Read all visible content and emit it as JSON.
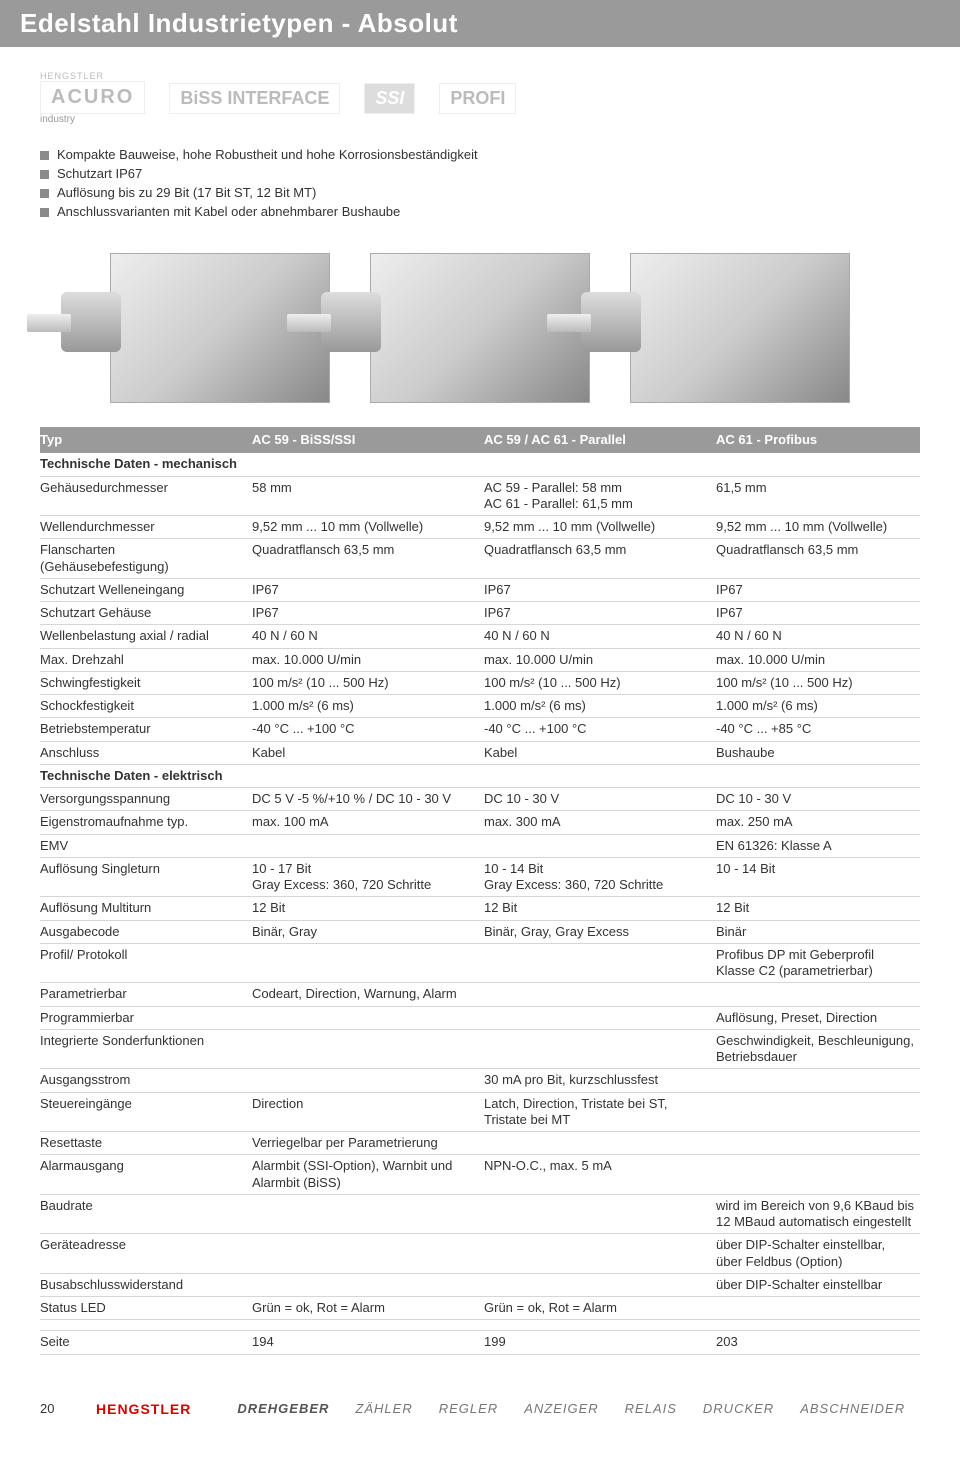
{
  "title": "Edelstahl Industrietypen - Absolut",
  "logos": {
    "l1_top": "HENGSTLER",
    "l1": "ACURO",
    "l1_sub": "industry",
    "l2": "BiSS INTERFACE",
    "l3": "SSI",
    "l4": "PROFI"
  },
  "features": [
    "Kompakte Bauweise, hohe Robustheit und hohe Korrosionsbeständigkeit",
    "Schutzart IP67",
    "Auflösung bis zu 29 Bit (17 Bit ST, 12 Bit MT)",
    "Anschlussvarianten mit Kabel oder abnehmbarer Bushaube"
  ],
  "table": {
    "header": {
      "label": "Typ",
      "c1": "AC 59 - BiSS/SSI",
      "c2": "AC 59 / AC 61 - Parallel",
      "c3": "AC 61 - Profibus"
    },
    "section_mech": "Technische Daten - mechanisch",
    "section_elek": "Technische Daten - elektrisch",
    "rows_mech": [
      {
        "label": "Gehäusedurchmesser",
        "c1": "58 mm",
        "c2": "AC 59 - Parallel: 58 mm\nAC 61 - Parallel: 61,5 mm",
        "c3": "61,5 mm"
      },
      {
        "label": "Wellendurchmesser",
        "c1": "9,52 mm ... 10 mm (Vollwelle)",
        "c2": "9,52 mm ... 10 mm (Vollwelle)",
        "c3": "9,52 mm ... 10 mm (Vollwelle)"
      },
      {
        "label": "Flanscharten\n(Gehäusebefestigung)",
        "c1": "Quadratflansch 63,5 mm",
        "c2": "Quadratflansch 63,5 mm",
        "c3": "Quadratflansch 63,5 mm"
      },
      {
        "label": "Schutzart Welleneingang",
        "c1": "IP67",
        "c2": "IP67",
        "c3": "IP67"
      },
      {
        "label": "Schutzart Gehäuse",
        "c1": "IP67",
        "c2": "IP67",
        "c3": "IP67"
      },
      {
        "label": "Wellenbelastung axial / radial",
        "c1": "40 N / 60 N",
        "c2": "40 N / 60 N",
        "c3": "40 N / 60 N"
      },
      {
        "label": "Max. Drehzahl",
        "c1": "max. 10.000 U/min",
        "c2": "max. 10.000 U/min",
        "c3": "max. 10.000 U/min"
      },
      {
        "label": "Schwingfestigkeit",
        "c1": "100 m/s² (10 ... 500 Hz)",
        "c2": "100 m/s² (10 ... 500 Hz)",
        "c3": "100 m/s² (10 ... 500 Hz)"
      },
      {
        "label": "Schockfestigkeit",
        "c1": "1.000 m/s² (6 ms)",
        "c2": "1.000 m/s² (6 ms)",
        "c3": "1.000 m/s² (6 ms)"
      },
      {
        "label": "Betriebstemperatur",
        "c1": "-40 °C ... +100 °C",
        "c2": "-40 °C ... +100 °C",
        "c3": "-40 °C ... +85 °C"
      },
      {
        "label": "Anschluss",
        "c1": "Kabel",
        "c2": "Kabel",
        "c3": "Bushaube"
      }
    ],
    "rows_elek": [
      {
        "label": "Versorgungsspannung",
        "c1": "DC 5 V -5 %/+10 % / DC 10 - 30 V",
        "c2": "DC 10 - 30 V",
        "c3": "DC 10 - 30 V"
      },
      {
        "label": "Eigenstromaufnahme typ.",
        "c1": "max. 100 mA",
        "c2": "max. 300 mA",
        "c3": "max. 250 mA"
      },
      {
        "label": "EMV",
        "c1": "",
        "c2": "",
        "c3": "EN 61326: Klasse A"
      },
      {
        "label": "Auflösung Singleturn",
        "c1": "10 - 17 Bit\nGray Excess: 360, 720 Schritte",
        "c2": "10 - 14 Bit\nGray Excess: 360, 720 Schritte",
        "c3": "10 - 14 Bit"
      },
      {
        "label": "Auflösung Multiturn",
        "c1": "12 Bit",
        "c2": "12 Bit",
        "c3": "12 Bit"
      },
      {
        "label": "Ausgabecode",
        "c1": "Binär, Gray",
        "c2": "Binär, Gray, Gray Excess",
        "c3": "Binär"
      },
      {
        "label": "Profil/ Protokoll",
        "c1": "",
        "c2": "",
        "c3": "Profibus DP mit Geberprofil Klasse C2 (parametrierbar)"
      },
      {
        "label": "Parametrierbar",
        "c1": "Codeart, Direction, Warnung, Alarm",
        "c2": "",
        "c3": ""
      },
      {
        "label": "Programmierbar",
        "c1": "",
        "c2": "",
        "c3": "Auflösung, Preset, Direction"
      },
      {
        "label": "Integrierte Sonderfunktionen",
        "c1": "",
        "c2": "",
        "c3": "Geschwindigkeit, Beschleunigung, Betriebsdauer"
      },
      {
        "label": "Ausgangsstrom",
        "c1": "",
        "c2": "30 mA pro Bit, kurzschlussfest",
        "c3": ""
      },
      {
        "label": "Steuereingänge",
        "c1": "Direction",
        "c2": "Latch, Direction, Tristate bei ST, Tristate bei MT",
        "c3": ""
      },
      {
        "label": "Resettaste",
        "c1": "Verriegelbar per Parametrierung",
        "c2": "",
        "c3": ""
      },
      {
        "label": "Alarmausgang",
        "c1": "Alarmbit (SSI-Option), Warnbit und Alarmbit (BiSS)",
        "c2": "NPN-O.C., max. 5 mA",
        "c3": ""
      },
      {
        "label": "Baudrate",
        "c1": "",
        "c2": "",
        "c3": "wird im Bereich von 9,6 KBaud bis 12 MBaud automatisch eingestellt"
      },
      {
        "label": "Geräteadresse",
        "c1": "",
        "c2": "",
        "c3": "über DIP-Schalter einstellbar, über Feldbus (Option)"
      },
      {
        "label": "Busabschlusswiderstand",
        "c1": "",
        "c2": "",
        "c3": "über DIP-Schalter einstellbar"
      },
      {
        "label": "Status LED",
        "c1": "Grün = ok, Rot = Alarm",
        "c2": "Grün = ok, Rot = Alarm",
        "c3": ""
      }
    ],
    "page_row": {
      "label": "Seite",
      "c1": "194",
      "c2": "199",
      "c3": "203"
    }
  },
  "footer": {
    "page": "20",
    "brand": "HENGSTLER",
    "categories": [
      "DREHGEBER",
      "ZÄHLER",
      "REGLER",
      "ANZEIGER",
      "RELAIS",
      "DRUCKER",
      "ABSCHNEIDER"
    ],
    "active": 0
  }
}
